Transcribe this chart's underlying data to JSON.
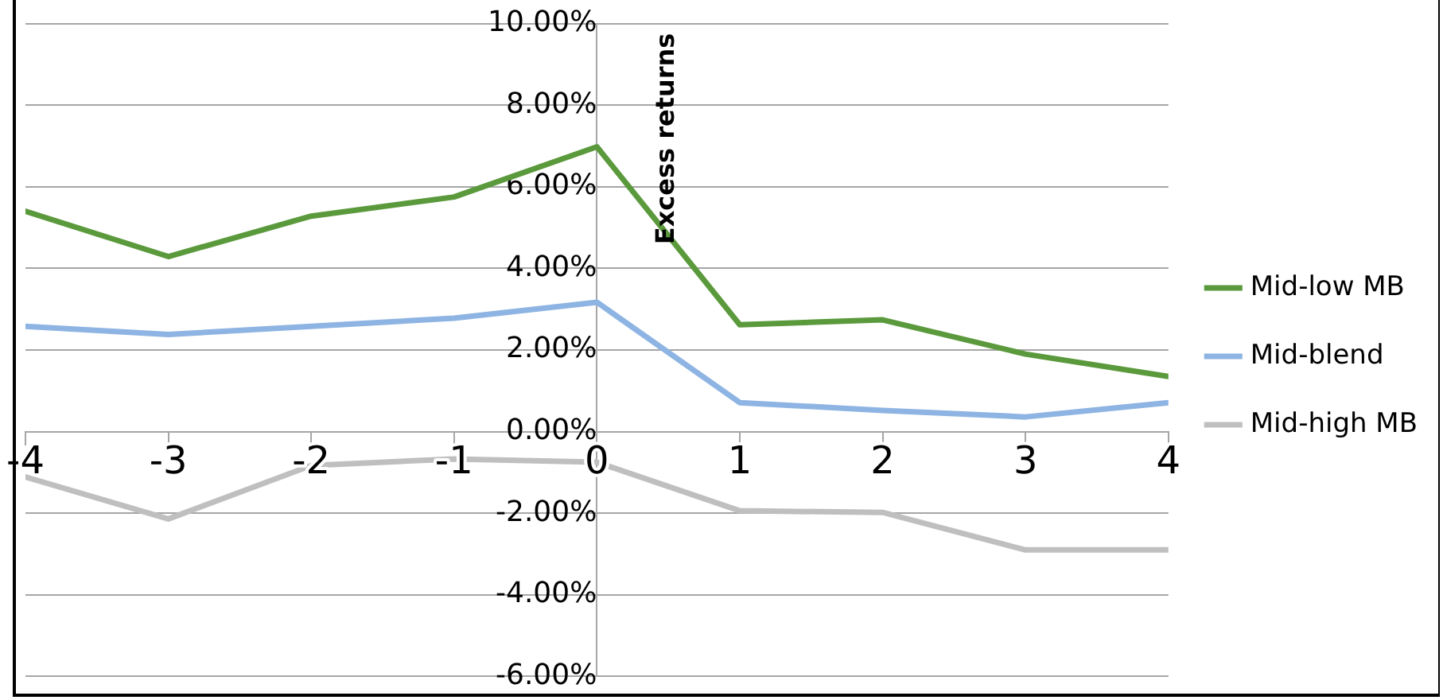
{
  "chart_data": {
    "type": "line",
    "ylabel": "Excess returns",
    "x": [
      -4,
      -3,
      -2,
      -1,
      0,
      1,
      2,
      3,
      4
    ],
    "xlim": [
      -4,
      4
    ],
    "xticks": [
      -4,
      -3,
      -2,
      -1,
      0,
      1,
      2,
      3,
      4
    ],
    "ylim": [
      -6,
      10
    ],
    "yticks": [
      {
        "value": -6,
        "label": "-6.00%"
      },
      {
        "value": -4,
        "label": "-4.00%"
      },
      {
        "value": -2,
        "label": "-2.00%"
      },
      {
        "value": 0,
        "label": "0.00%"
      },
      {
        "value": 2,
        "label": "2.00%"
      },
      {
        "value": 4,
        "label": "4.00%"
      },
      {
        "value": 6,
        "label": "6.00%"
      },
      {
        "value": 8,
        "label": "8.00%"
      },
      {
        "value": 10,
        "label": "10.00%"
      }
    ],
    "grid": "y",
    "legend": "right",
    "marker": "none",
    "line_style": "solid",
    "series": [
      {
        "name": "Mid-low MB",
        "color": "#5b9a3c",
        "values": [
          5.4,
          4.29,
          5.28,
          5.75,
          6.98,
          2.62,
          2.74,
          1.9,
          1.35
        ]
      },
      {
        "name": "Mid-blend",
        "color": "#8eb4e3",
        "values": [
          2.58,
          2.38,
          2.58,
          2.78,
          3.17,
          0.71,
          0.52,
          0.36,
          0.71
        ]
      },
      {
        "name": "Mid-high MB",
        "color": "#bfbfbf",
        "values": [
          -1.11,
          -2.14,
          -0.83,
          -0.67,
          -0.75,
          -1.94,
          -1.98,
          -2.9,
          -2.9
        ]
      }
    ]
  }
}
